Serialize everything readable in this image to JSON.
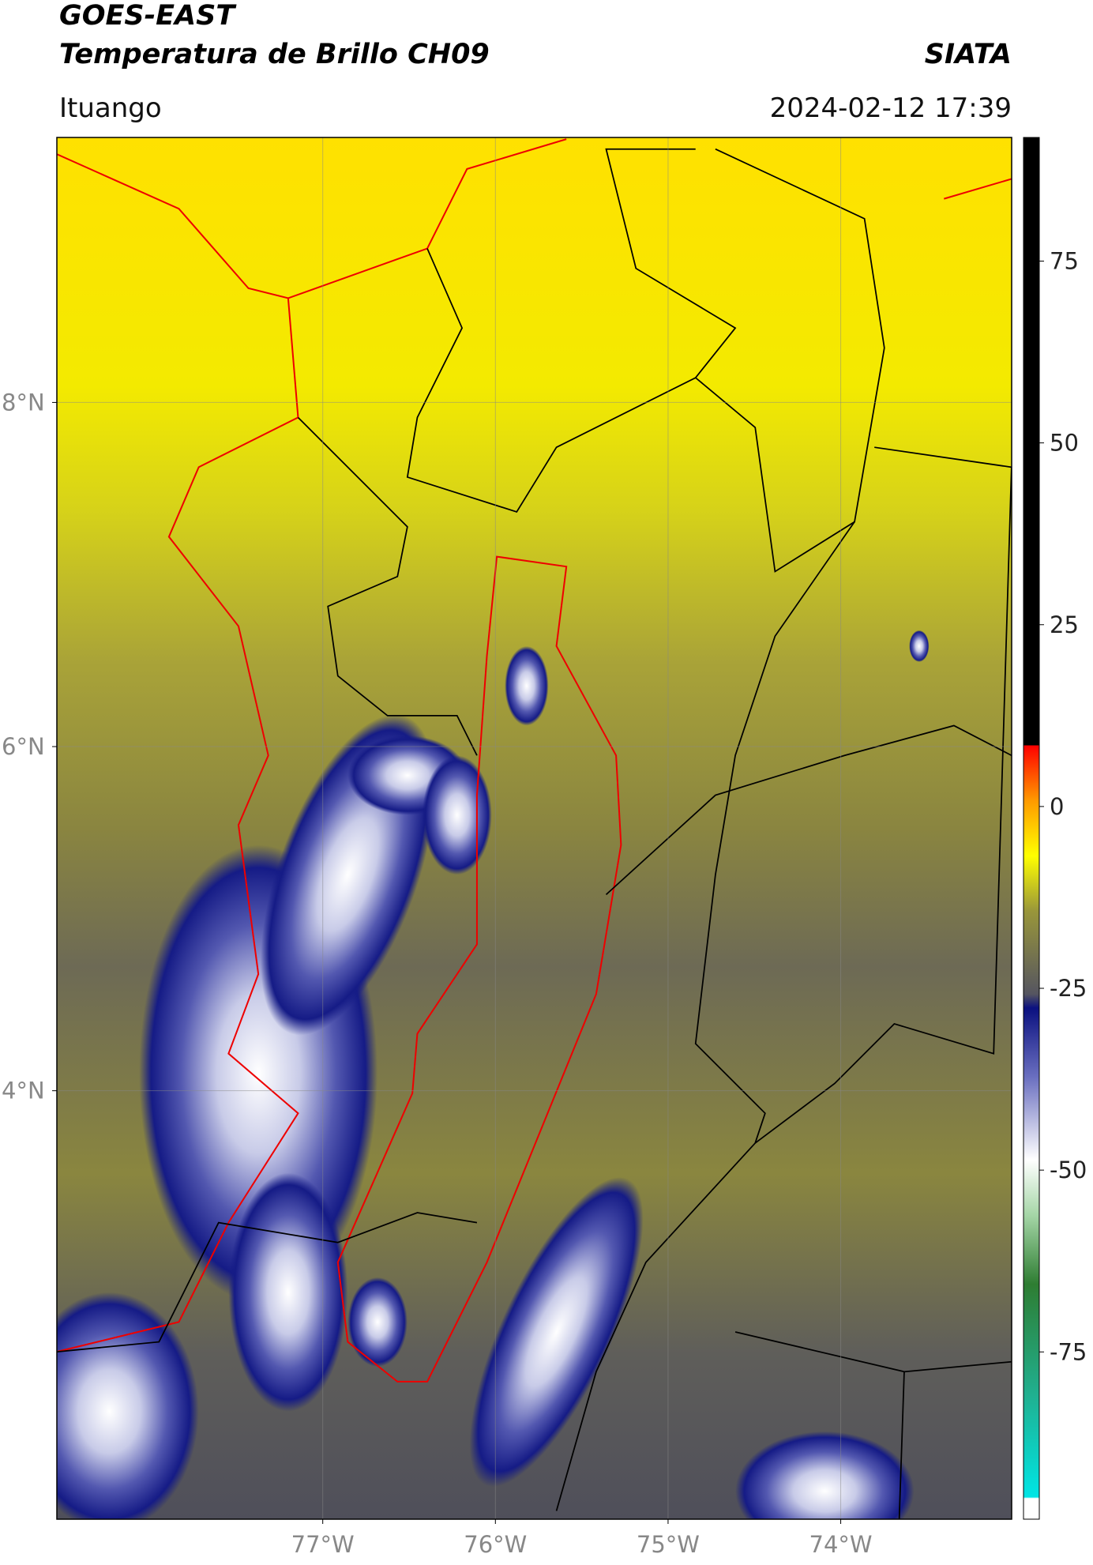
{
  "header": {
    "title": "GOES-EAST",
    "subtitle": "Temperatura de Brillo CH09",
    "organization": "SIATA",
    "location": "Ituango",
    "timestamp": "2024-02-12 17:39"
  },
  "map": {
    "lat_lim": [
      1.51,
      9.54
    ],
    "lon_lim": [
      -78.54,
      -73.01
    ],
    "lat_ticks": [
      {
        "value": 4,
        "label": "4°N"
      },
      {
        "value": 6,
        "label": "6°N"
      },
      {
        "value": 8,
        "label": "8°N"
      }
    ],
    "lon_ticks": [
      {
        "value": -77,
        "label": "77°W"
      },
      {
        "value": -76,
        "label": "76°W"
      },
      {
        "value": -75,
        "label": "75°W"
      },
      {
        "value": -74,
        "label": "74°W"
      }
    ],
    "grid": true,
    "colorbar": {
      "lim": [
        -98,
        92
      ],
      "ticks": [
        -75,
        -50,
        -25,
        0,
        25,
        50,
        75
      ]
    }
  }
}
